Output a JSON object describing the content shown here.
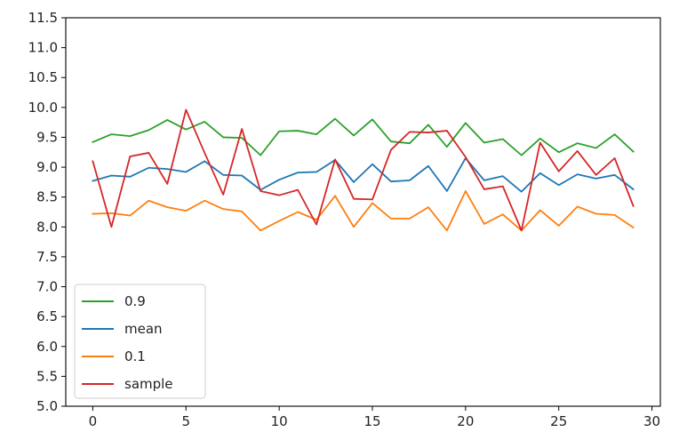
{
  "chart_data": {
    "type": "line",
    "x": [
      0,
      1,
      2,
      3,
      4,
      5,
      6,
      7,
      8,
      9,
      10,
      11,
      12,
      13,
      14,
      15,
      16,
      17,
      18,
      19,
      20,
      21,
      22,
      23,
      24,
      25,
      26,
      27,
      28,
      29
    ],
    "series": [
      {
        "name": "0.9",
        "color": "#2ca02c",
        "values": [
          9.42,
          9.55,
          9.52,
          9.62,
          9.79,
          9.63,
          9.76,
          9.5,
          9.49,
          9.2,
          9.6,
          9.61,
          9.55,
          9.81,
          9.53,
          9.8,
          9.43,
          9.4,
          9.71,
          9.34,
          9.74,
          9.41,
          9.47,
          9.2,
          9.48,
          9.25,
          9.4,
          9.32,
          9.55,
          9.26
        ]
      },
      {
        "name": "mean",
        "color": "#1f77b4",
        "values": [
          8.77,
          8.86,
          8.84,
          8.99,
          8.97,
          8.92,
          9.1,
          8.87,
          8.86,
          8.62,
          8.79,
          8.91,
          8.92,
          9.12,
          8.75,
          9.05,
          8.76,
          8.78,
          9.02,
          8.6,
          9.15,
          8.78,
          8.85,
          8.59,
          8.9,
          8.7,
          8.88,
          8.81,
          8.87,
          8.63
        ]
      },
      {
        "name": "0.1",
        "color": "#ff7f0e",
        "values": [
          8.22,
          8.23,
          8.19,
          8.44,
          8.33,
          8.27,
          8.44,
          8.3,
          8.26,
          7.94,
          8.1,
          8.25,
          8.12,
          8.52,
          8.0,
          8.4,
          8.14,
          8.14,
          8.33,
          7.94,
          8.6,
          8.05,
          8.21,
          7.94,
          8.28,
          8.02,
          8.34,
          8.22,
          8.2,
          7.99
        ]
      },
      {
        "name": "sample",
        "color": "#d62728",
        "values": [
          9.1,
          8.0,
          9.18,
          9.24,
          8.72,
          9.96,
          9.24,
          8.54,
          9.64,
          8.6,
          8.53,
          8.62,
          8.04,
          9.13,
          8.47,
          8.46,
          9.29,
          9.59,
          9.58,
          9.61,
          9.17,
          8.63,
          8.68,
          7.94,
          9.41,
          8.93,
          9.27,
          8.87,
          9.15,
          8.35
        ]
      }
    ],
    "xlim": [
      -1.45,
      30.45
    ],
    "ylim": [
      5.0,
      11.5
    ],
    "xticks": [
      0,
      5,
      10,
      15,
      20,
      25,
      30
    ],
    "yticks": [
      5.0,
      5.5,
      6.0,
      6.5,
      7.0,
      7.5,
      8.0,
      8.5,
      9.0,
      9.5,
      10.0,
      10.5,
      11.0,
      11.5
    ],
    "xtick_labels": [
      "0",
      "5",
      "10",
      "15",
      "20",
      "25",
      "30"
    ],
    "ytick_labels": [
      "5.0",
      "5.5",
      "6.0",
      "6.5",
      "7.0",
      "7.5",
      "8.0",
      "8.5",
      "9.0",
      "9.5",
      "10.0",
      "10.5",
      "11.0",
      "11.5"
    ],
    "legend": {
      "position": "lower-left",
      "entries": [
        "0.9",
        "mean",
        "0.1",
        "sample"
      ]
    },
    "grid": false,
    "title": "",
    "xlabel": "",
    "ylabel": ""
  }
}
